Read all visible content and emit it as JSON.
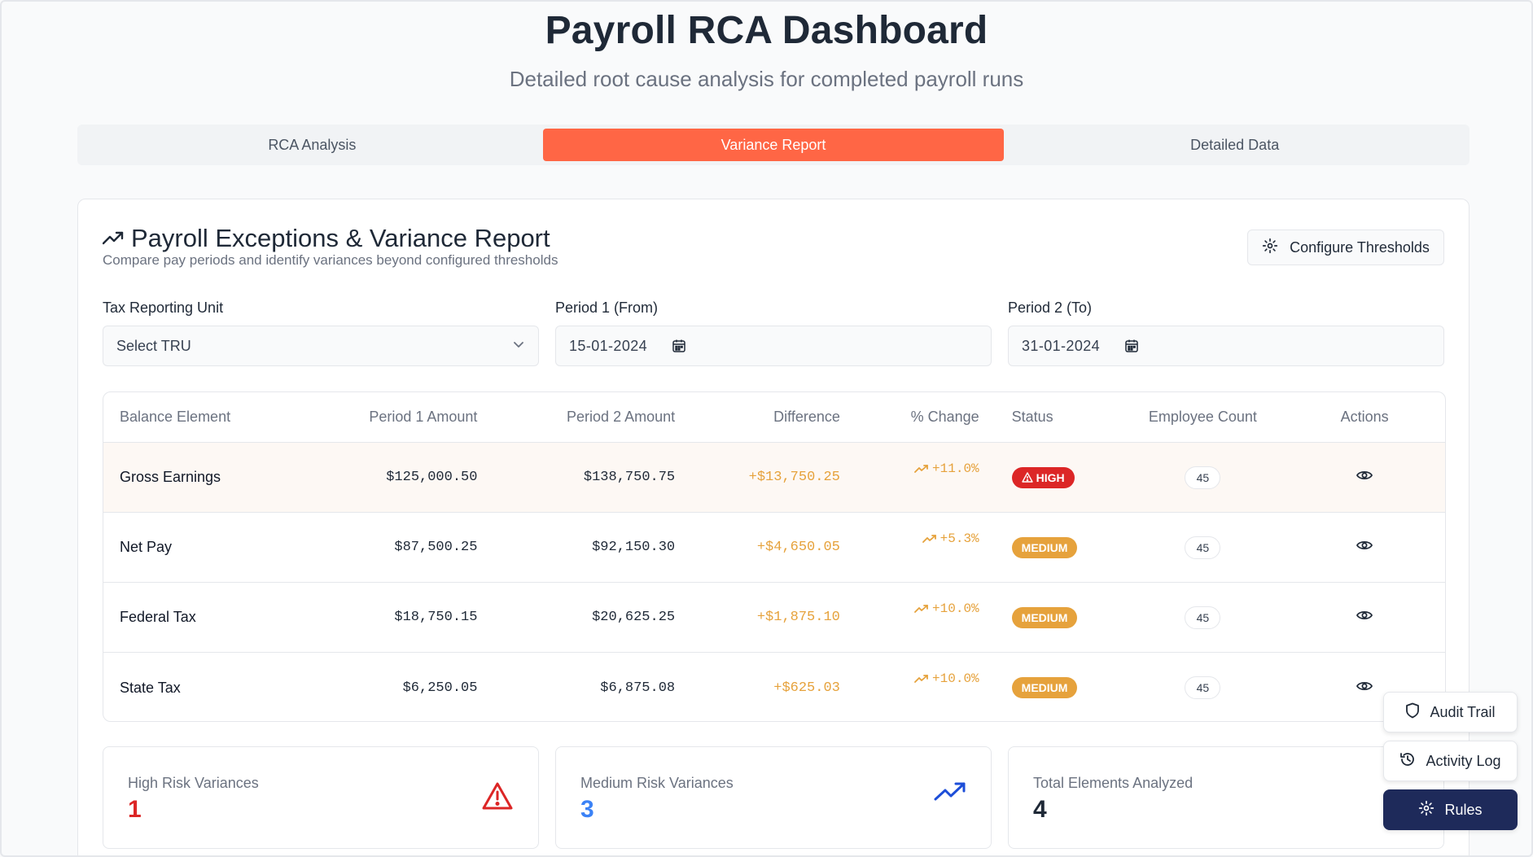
{
  "header": {
    "title": "Payroll RCA Dashboard",
    "subtitle": "Detailed root cause analysis for completed payroll runs"
  },
  "tabs": [
    {
      "label": "RCA Analysis",
      "active": false
    },
    {
      "label": "Variance Report",
      "active": true
    },
    {
      "label": "Detailed Data",
      "active": false
    }
  ],
  "report": {
    "title": "Payroll Exceptions & Variance Report",
    "description": "Compare pay periods and identify variances beyond configured thresholds",
    "configure_label": "Configure Thresholds",
    "filters": {
      "tru_label": "Tax Reporting Unit",
      "tru_value": "Select TRU",
      "period1_label": "Period 1 (From)",
      "period1_value": "15-01-2024",
      "period2_label": "Period 2 (To)",
      "period2_value": "31-01-2024"
    },
    "columns": [
      "Balance Element",
      "Period 1 Amount",
      "Period 2 Amount",
      "Difference",
      "% Change",
      "Status",
      "Employee Count",
      "Actions"
    ],
    "rows": [
      {
        "element": "Gross Earnings",
        "p1": "$125,000.50",
        "p2": "$138,750.75",
        "diff": "+$13,750.25",
        "pct": "+11.0%",
        "status": "HIGH",
        "count": "45"
      },
      {
        "element": "Net Pay",
        "p1": "$87,500.25",
        "p2": "$92,150.30",
        "diff": "+$4,650.05",
        "pct": "+5.3%",
        "status": "MEDIUM",
        "count": "45"
      },
      {
        "element": "Federal Tax",
        "p1": "$18,750.15",
        "p2": "$20,625.25",
        "diff": "+$1,875.10",
        "pct": "+10.0%",
        "status": "MEDIUM",
        "count": "45"
      },
      {
        "element": "State Tax",
        "p1": "$6,250.05",
        "p2": "$6,875.08",
        "diff": "+$625.03",
        "pct": "+10.0%",
        "status": "MEDIUM",
        "count": "45"
      }
    ],
    "stats": [
      {
        "label": "High Risk Variances",
        "value": "1",
        "color": "#dc2626",
        "icon": "warning-triangle-icon"
      },
      {
        "label": "Medium Risk Variances",
        "value": "3",
        "color": "#3b82f6",
        "icon": "trending-up-icon"
      },
      {
        "label": "Total Elements Analyzed",
        "value": "4",
        "color": "#1f2937",
        "icon": "grid-icon"
      }
    ]
  },
  "floating": {
    "audit_label": "Audit Trail",
    "activity_label": "Activity Log",
    "rules_label": "Rules"
  },
  "colors": {
    "accent": "#ff6645",
    "high": "#dc2626",
    "medium": "#e6a23c",
    "navy": "#1e2a5a"
  }
}
